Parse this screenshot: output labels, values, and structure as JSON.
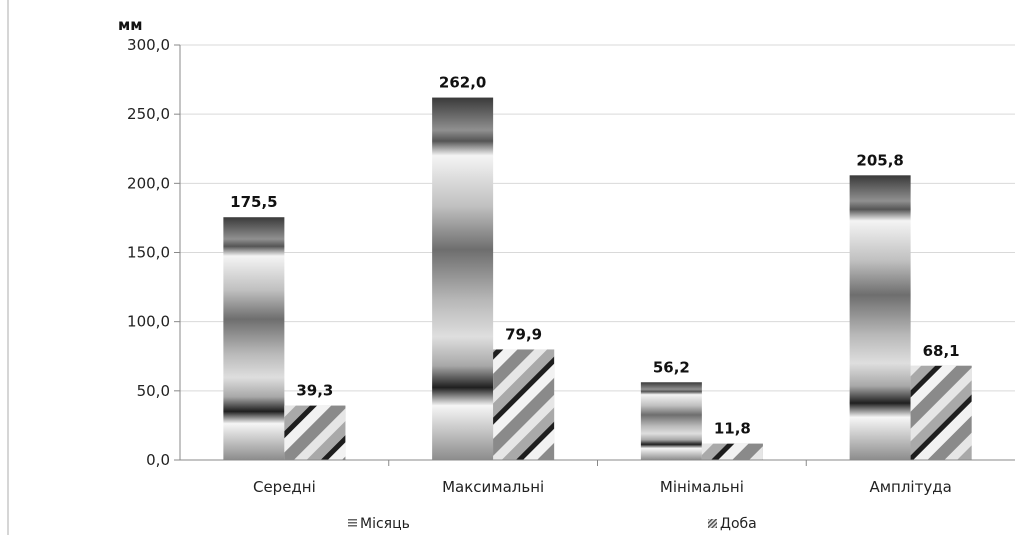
{
  "chart_data": {
    "type": "bar",
    "ylabel": "мм",
    "ylim": [
      0,
      300
    ],
    "yticks": [
      "0,0",
      "50,0",
      "100,0",
      "150,0",
      "200,0",
      "250,0",
      "300,0"
    ],
    "categories": [
      "Середні",
      "Максимальні",
      "Мінімальні",
      "Амплітуда"
    ],
    "series": [
      {
        "name": "Місяць",
        "values": [
          175.5,
          262.0,
          56.2,
          205.8
        ],
        "labels": [
          "175,5",
          "262,0",
          "56,2",
          "205,8"
        ],
        "fill": "vertical-gradient"
      },
      {
        "name": "Доба",
        "values": [
          39.3,
          79.9,
          11.8,
          68.1
        ],
        "labels": [
          "39,3",
          "79,9",
          "11,8",
          "68,1"
        ],
        "fill": "diagonal-hatch"
      }
    ],
    "grid": true,
    "legend_position": "bottom",
    "colors": {
      "grid": "#d9d9d9",
      "axis": "#888888",
      "text": "#111111"
    }
  },
  "legend": {
    "items": [
      {
        "label": "Місяць",
        "icon": "horizontal-lines-icon"
      },
      {
        "label": "Доба",
        "icon": "diagonal-hatch-icon"
      }
    ]
  }
}
